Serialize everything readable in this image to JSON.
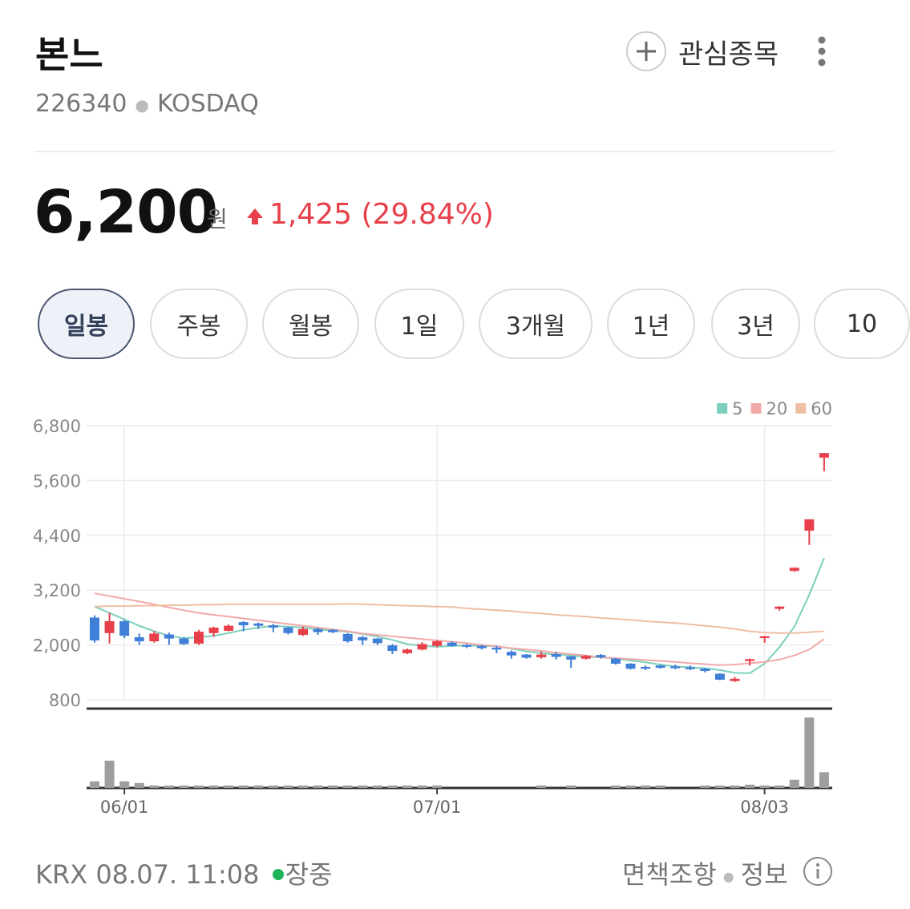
{
  "header": {
    "title": "본느",
    "code": "226340",
    "market": "KOSDAQ",
    "watchlist": "관심종목"
  },
  "quote": {
    "price": "6,200",
    "unit": "원",
    "change": "1,425",
    "change_rate": "(29.84%)"
  },
  "tabs": [
    "일봉",
    "주봉",
    "월봉",
    "1일",
    "3개월",
    "1년",
    "3년",
    "10"
  ],
  "chart_data": {
    "type": "candlestick",
    "categories": [
      null,
      null,
      "06/01",
      null,
      null,
      null,
      null,
      null,
      null,
      null,
      null,
      null,
      null,
      null,
      null,
      null,
      null,
      null,
      null,
      null,
      null,
      null,
      null,
      "07/01",
      null,
      null,
      null,
      null,
      null,
      null,
      null,
      null,
      null,
      null,
      null,
      null,
      null,
      null,
      null,
      null,
      null,
      null,
      null,
      null,
      null,
      "08/03",
      null,
      null,
      null,
      null
    ],
    "open": [
      2600,
      2260,
      2520,
      2170,
      2080,
      2230,
      2140,
      2030,
      2260,
      2310,
      2500,
      2470,
      2430,
      2380,
      2220,
      2350,
      2330,
      2240,
      2170,
      2140,
      1990,
      1820,
      1900,
      1980,
      2050,
      2000,
      1980,
      1940,
      1850,
      1790,
      1730,
      1800,
      1750,
      1700,
      1780,
      1700,
      1590,
      1520,
      1550,
      1530,
      1510,
      1480,
      1370,
      1210,
      1650,
      2150,
      2790,
      3620,
      4500,
      6100
    ],
    "high": [
      2650,
      2700,
      2550,
      2250,
      2300,
      2270,
      2170,
      2330,
      2400,
      2450,
      2520,
      2490,
      2460,
      2400,
      2400,
      2380,
      2350,
      2260,
      2200,
      2150,
      2020,
      1920,
      2060,
      2100,
      2080,
      2020,
      2000,
      1980,
      1880,
      1800,
      1850,
      1850,
      1760,
      1780,
      1800,
      1720,
      1600,
      1550,
      1570,
      1570,
      1550,
      1500,
      1380,
      1300,
      1700,
      2200,
      2850,
      3700,
      4750,
      6200
    ],
    "low": [
      2050,
      2030,
      2150,
      2000,
      2050,
      2000,
      2000,
      2000,
      2180,
      2300,
      2300,
      2350,
      2280,
      2230,
      2200,
      2220,
      2260,
      2050,
      2000,
      2000,
      1800,
      1800,
      1880,
      1950,
      1960,
      1930,
      1900,
      1820,
      1700,
      1700,
      1700,
      1680,
      1500,
      1680,
      1700,
      1570,
      1460,
      1450,
      1480,
      1470,
      1450,
      1400,
      1230,
      1190,
      1550,
      2050,
      2750,
      3600,
      4190,
      5800
    ],
    "close": [
      2100,
      2520,
      2200,
      2080,
      2250,
      2140,
      2020,
      2290,
      2380,
      2420,
      2430,
      2420,
      2380,
      2260,
      2350,
      2280,
      2280,
      2080,
      2100,
      2040,
      1870,
      1900,
      2020,
      2080,
      1980,
      1960,
      1930,
      1900,
      1770,
      1720,
      1790,
      1740,
      1680,
      1760,
      1730,
      1590,
      1480,
      1480,
      1500,
      1490,
      1470,
      1430,
      1240,
      1260,
      1690,
      2190,
      2840,
      3690,
      4750,
      6200
    ],
    "up_color": "#e8404a",
    "down_color": "#3f7fd8",
    "series": [
      {
        "name": "5",
        "color": "#7ccfbd",
        "values": [
          2840,
          2700,
          2560,
          2420,
          2300,
          2200,
          2150,
          2170,
          2200,
          2260,
          2330,
          2380,
          2420,
          2400,
          2380,
          2340,
          2310,
          2290,
          2240,
          2180,
          2110,
          2020,
          1980,
          1960,
          1980,
          1990,
          1980,
          1970,
          1920,
          1860,
          1820,
          1790,
          1770,
          1740,
          1730,
          1700,
          1660,
          1620,
          1570,
          1530,
          1510,
          1490,
          1450,
          1390,
          1380,
          1590,
          1950,
          2400,
          3100,
          3900
        ]
      },
      {
        "name": "20",
        "color": "#f2a9a9",
        "values": [
          3130,
          3070,
          3010,
          2950,
          2890,
          2820,
          2760,
          2700,
          2660,
          2620,
          2580,
          2540,
          2500,
          2460,
          2420,
          2380,
          2340,
          2300,
          2250,
          2220,
          2190,
          2160,
          2130,
          2100,
          2070,
          2040,
          2000,
          1970,
          1930,
          1900,
          1870,
          1830,
          1800,
          1770,
          1730,
          1710,
          1690,
          1670,
          1650,
          1630,
          1600,
          1580,
          1560,
          1570,
          1600,
          1630,
          1680,
          1770,
          1900,
          2130
        ]
      },
      {
        "name": "60",
        "color": "#efbea3",
        "values": [
          2840,
          2850,
          2850,
          2860,
          2860,
          2870,
          2870,
          2880,
          2880,
          2890,
          2890,
          2890,
          2890,
          2890,
          2890,
          2890,
          2890,
          2900,
          2890,
          2880,
          2870,
          2860,
          2850,
          2840,
          2830,
          2800,
          2780,
          2760,
          2740,
          2710,
          2690,
          2660,
          2640,
          2620,
          2590,
          2570,
          2550,
          2520,
          2500,
          2480,
          2450,
          2420,
          2390,
          2350,
          2300,
          2270,
          2260,
          2260,
          2280,
          2300
        ]
      }
    ],
    "ylim": [
      800,
      6800
    ],
    "yticks": [
      {
        "value": 6800,
        "label": "6,800"
      },
      {
        "value": 5600,
        "label": "5,600"
      },
      {
        "value": 4400,
        "label": "4,400"
      },
      {
        "value": 3200,
        "label": "3,200"
      },
      {
        "value": 2000,
        "label": "2,000"
      },
      800
    ],
    "grid": true,
    "legend": "top-right",
    "volume": {
      "color": "#9e9e9e",
      "ylim": [
        0,
        90
      ],
      "values": [
        8,
        33,
        8,
        6,
        3,
        3,
        3,
        3,
        3,
        3,
        3,
        3,
        3,
        3,
        3,
        3,
        3,
        3,
        3,
        3,
        3,
        3,
        3,
        3,
        0,
        0,
        0,
        0,
        0,
        0,
        3,
        0,
        3,
        0,
        0,
        3,
        3,
        3,
        3,
        0,
        0,
        3,
        3,
        3,
        4,
        3,
        3,
        10,
        85,
        19
      ]
    }
  },
  "footer": {
    "source": "KRX 08.07. 11:08",
    "status": "장중",
    "disclaimer": "면책조항",
    "info": "정보"
  }
}
